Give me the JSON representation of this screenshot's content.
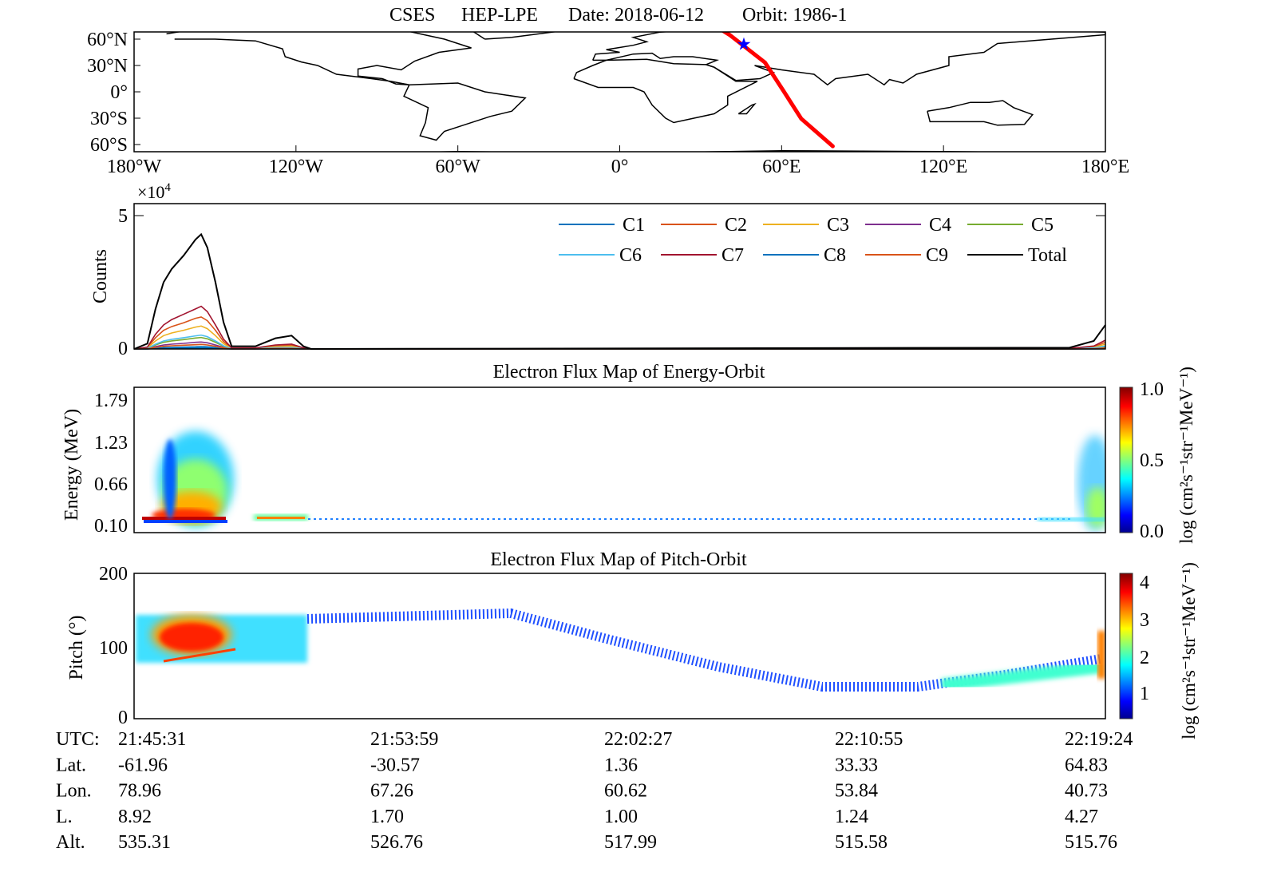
{
  "title": {
    "mission": "CSES",
    "payload": "HEP-LPE",
    "date": "Date: 2018-06-12",
    "orbit": "Orbit: 1986-1"
  },
  "chart_data": [
    {
      "type": "map",
      "lon_ticks": [
        "180°W",
        "120°W",
        "60°W",
        "0°",
        "60°E",
        "120°E",
        "180°E"
      ],
      "lat_ticks": [
        "60°N",
        "30°N",
        "0°",
        "30°S",
        "60°S"
      ],
      "orbit_track": {
        "color": "#ff0000",
        "points_lat_lon": [
          [
            -61.96,
            78.96
          ],
          [
            -30.57,
            67.26
          ],
          [
            1.36,
            60.62
          ],
          [
            33.33,
            53.84
          ],
          [
            64.83,
            40.73
          ],
          [
            70,
            38
          ]
        ]
      },
      "marker": {
        "icon": "star",
        "color": "#0000ff",
        "lat": 55,
        "lon": 46
      }
    },
    {
      "type": "line",
      "ylabel": "Counts",
      "y_multiplier": "×10",
      "y_multiplier_exp": "4",
      "y_ticks": [
        "0",
        "5"
      ],
      "ylim": [
        0,
        5
      ],
      "x": [
        "21:45:31",
        "21:45:59",
        "21:46:16",
        "21:46:33",
        "21:46:50",
        "21:47:15",
        "21:47:40",
        "21:47:52",
        "21:48:05",
        "21:48:22",
        "21:48:39",
        "21:48:56",
        "21:49:46",
        "21:50:28",
        "21:51:02",
        "21:51:27",
        "21:51:43",
        "22:18:17",
        "22:19:08",
        "22:19:33"
      ],
      "legend_placement": "top-right",
      "series": [
        {
          "name": "C1",
          "color": "#0072BD",
          "values": [
            0,
            0,
            0.03,
            0.05,
            0.06,
            0.07,
            0.08,
            0.09,
            0.08,
            0.05,
            0.02,
            0,
            0,
            0.01,
            0.01,
            0,
            0,
            0,
            0.01,
            0.02
          ]
        },
        {
          "name": "C2",
          "color": "#D95319",
          "values": [
            0,
            0.06,
            0.42,
            0.7,
            0.84,
            0.98,
            1.15,
            1.2,
            1.06,
            0.7,
            0.28,
            0.03,
            0.03,
            0.11,
            0.14,
            0.03,
            0,
            0.01,
            0.08,
            0.25
          ]
        },
        {
          "name": "C3",
          "color": "#EDB120",
          "values": [
            0,
            0.04,
            0.3,
            0.5,
            0.6,
            0.7,
            0.82,
            0.86,
            0.76,
            0.5,
            0.2,
            0.02,
            0.02,
            0.08,
            0.1,
            0.02,
            0,
            0.01,
            0.06,
            0.18
          ]
        },
        {
          "name": "C4",
          "color": "#7E2F8E",
          "values": [
            0,
            0.01,
            0.09,
            0.15,
            0.18,
            0.21,
            0.25,
            0.26,
            0.23,
            0.15,
            0.06,
            0.01,
            0.01,
            0.02,
            0.03,
            0.01,
            0,
            0,
            0.02,
            0.05
          ]
        },
        {
          "name": "C5",
          "color": "#77AC30",
          "values": [
            0,
            0.02,
            0.15,
            0.25,
            0.3,
            0.35,
            0.41,
            0.43,
            0.38,
            0.25,
            0.1,
            0.01,
            0.01,
            0.04,
            0.05,
            0.01,
            0,
            0,
            0.03,
            0.09
          ]
        },
        {
          "name": "C6",
          "color": "#4DBEEE",
          "values": [
            0,
            0.02,
            0.18,
            0.3,
            0.36,
            0.42,
            0.49,
            0.52,
            0.46,
            0.3,
            0.12,
            0.01,
            0.01,
            0.05,
            0.06,
            0.01,
            0,
            0.01,
            0.04,
            0.11
          ]
        },
        {
          "name": "C7",
          "color": "#A2142F",
          "values": [
            0,
            0.07,
            0.55,
            0.9,
            1.1,
            1.3,
            1.5,
            1.6,
            1.4,
            0.9,
            0.37,
            0.04,
            0.04,
            0.15,
            0.18,
            0.04,
            0,
            0.02,
            0.11,
            0.33
          ]
        },
        {
          "name": "C8",
          "color": "#0072BD",
          "values": [
            0,
            0,
            0.02,
            0.03,
            0.03,
            0.04,
            0.04,
            0.04,
            0.04,
            0.03,
            0.01,
            0,
            0,
            0,
            0,
            0,
            0,
            0,
            0,
            0.01
          ]
        },
        {
          "name": "C9",
          "color": "#D95319",
          "values": [
            0,
            0.01,
            0.06,
            0.1,
            0.12,
            0.14,
            0.16,
            0.17,
            0.15,
            0.1,
            0.04,
            0,
            0,
            0.02,
            0.02,
            0,
            0,
            0,
            0.01,
            0.04
          ]
        },
        {
          "name": "Total",
          "color": "#000000",
          "values": [
            0,
            0.2,
            1.5,
            2.5,
            3.0,
            3.5,
            4.1,
            4.3,
            3.8,
            2.5,
            1.0,
            0.1,
            0.1,
            0.4,
            0.5,
            0.1,
            0,
            0.05,
            0.3,
            0.9
          ]
        }
      ]
    },
    {
      "type": "heatmap",
      "title": "Electron Flux Map of Energy-Orbit",
      "ylabel": "Energy (MeV)",
      "y_ticks": [
        "0.10",
        "0.66",
        "1.23",
        "1.79"
      ],
      "colorbar": {
        "ticks": [
          "0.0",
          "0.5",
          "1.0"
        ],
        "range": [
          0,
          1
        ],
        "label": "log (cm²s⁻¹str⁻¹MeV⁻¹)",
        "colormap": "jet"
      }
    },
    {
      "type": "heatmap",
      "title": "Electron Flux Map of Pitch-Orbit",
      "ylabel": "Pitch (°)",
      "y_ticks": [
        "0",
        "100",
        "200"
      ],
      "ylim": [
        0,
        200
      ],
      "colorbar": {
        "ticks": [
          "1",
          "2",
          "3",
          "4"
        ],
        "label": "log (cm²s⁻¹str⁻¹MeV⁻¹)",
        "colormap": "jet"
      }
    }
  ],
  "orbit_table": {
    "rows": [
      {
        "label": "UTC:",
        "values": [
          "21:45:31",
          "21:53:59",
          "22:02:27",
          "22:10:55",
          "22:19:24"
        ]
      },
      {
        "label": "Lat.",
        "values": [
          "-61.96",
          "-30.57",
          "1.36",
          "33.33",
          "64.83"
        ]
      },
      {
        "label": "Lon.",
        "values": [
          "78.96",
          "67.26",
          "60.62",
          "53.84",
          "40.73"
        ]
      },
      {
        "label": "L.",
        "values": [
          "8.92",
          "1.70",
          "1.00",
          "1.24",
          "4.27"
        ]
      },
      {
        "label": "Alt.",
        "values": [
          "535.31",
          "526.76",
          "517.99",
          "515.58",
          "515.76"
        ]
      }
    ]
  }
}
